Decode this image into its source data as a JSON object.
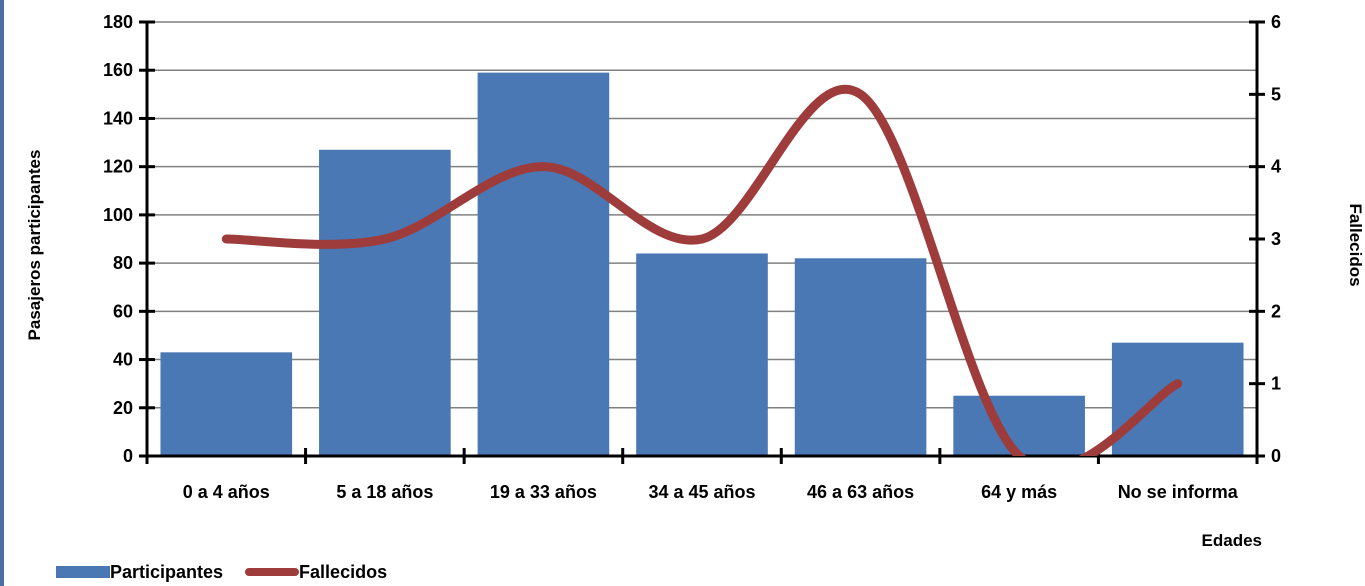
{
  "chart_data": {
    "type": "bar",
    "categories": [
      "0 a 4 años",
      "5 a 18 años",
      "19 a 33 años",
      "34 a 45 años",
      "46 a 63 años",
      "64 y más",
      "No se informa"
    ],
    "series": [
      {
        "name": "Participantes",
        "type": "bar",
        "axis": "left",
        "values": [
          43,
          127,
          159,
          84,
          82,
          25,
          47
        ]
      },
      {
        "name": "Fallecidos",
        "type": "line",
        "axis": "right",
        "smooth": true,
        "values": [
          3,
          3,
          4,
          3,
          5,
          0,
          1
        ]
      }
    ],
    "xlabel": "Edades",
    "ylabel": "Pasajeros participantes",
    "y2label": "Fallecidos",
    "ylim": [
      0,
      180
    ],
    "y2lim": [
      0,
      6
    ],
    "yticks": [
      "0",
      "20",
      "40",
      "60",
      "80",
      "100",
      "120",
      "140",
      "160",
      "180"
    ],
    "y2ticks": [
      "0",
      "1",
      "2",
      "3",
      "4",
      "5",
      "6"
    ],
    "grid": true,
    "legend_position": "bottom-left",
    "colors": {
      "bar": "#4a78b4",
      "line": "#9e3c3c",
      "grid": "#808080",
      "frame": "#4a6fa5"
    }
  }
}
